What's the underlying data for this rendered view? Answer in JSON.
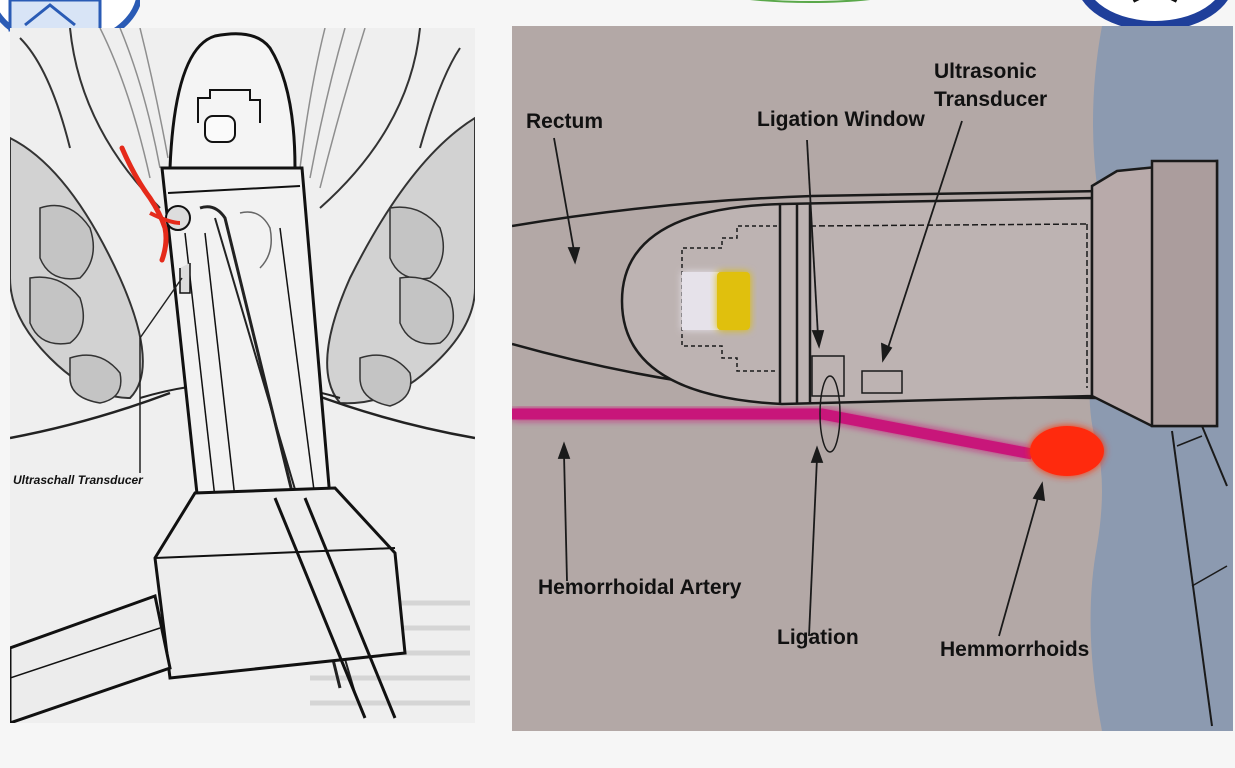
{
  "left_figure": {
    "label": "Ultraschall Transducer"
  },
  "right_figure": {
    "labels": {
      "rectum": "Rectum",
      "ligation_window": "Ligation Window",
      "ultrasonic_transducer_line1": "Ultrasonic",
      "ultrasonic_transducer_line2": "Transducer",
      "hemorrhoidal_artery": "Hemorrhoidal Artery",
      "ligation": "Ligation",
      "hemmorrhoids": "Hemmorrhoids"
    }
  },
  "colors": {
    "artery": "#c8147a",
    "hemorrhoid": "#ff2a10",
    "transducer_yellow": "#e0c010",
    "left_suture": "#e52a1a",
    "right_background": "#b3a8a6",
    "anal_tissue": "#8c9ab0"
  }
}
